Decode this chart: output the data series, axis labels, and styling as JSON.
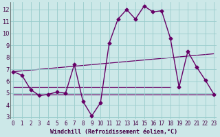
{
  "title": "",
  "xlabel": "Windchill (Refroidissement éolien,°C)",
  "ylabel": "",
  "bg_color": "#cce8e8",
  "line_color": "#660066",
  "grid_color": "#99cccc",
  "x_ticks": [
    0,
    1,
    2,
    3,
    4,
    5,
    6,
    7,
    8,
    9,
    10,
    11,
    12,
    13,
    14,
    15,
    16,
    17,
    18,
    19,
    20,
    21,
    22,
    23
  ],
  "y_ticks": [
    3,
    4,
    5,
    6,
    7,
    8,
    9,
    10,
    11,
    12
  ],
  "ylim": [
    2.8,
    12.6
  ],
  "xlim": [
    -0.3,
    23.3
  ],
  "main_series": {
    "x": [
      0,
      1,
      2,
      3,
      4,
      5,
      6,
      7,
      8,
      9,
      10,
      11,
      12,
      13,
      14,
      15,
      16,
      17,
      18,
      19,
      20,
      21,
      22,
      23
    ],
    "y": [
      6.8,
      6.5,
      5.3,
      4.8,
      4.9,
      5.1,
      5.0,
      7.4,
      4.3,
      3.1,
      4.2,
      9.2,
      11.2,
      12.0,
      11.2,
      12.3,
      11.8,
      11.9,
      9.6,
      5.5,
      8.5,
      7.2,
      6.1,
      4.9
    ]
  },
  "ref_lines": [
    {
      "x": [
        0,
        23
      ],
      "y": [
        6.8,
        8.3
      ]
    },
    {
      "x": [
        0,
        18
      ],
      "y": [
        5.5,
        5.5
      ]
    },
    {
      "x": [
        0,
        23
      ],
      "y": [
        4.9,
        4.9
      ]
    }
  ],
  "marker": "D",
  "markersize": 2.5,
  "linewidth": 1.0,
  "ref_linewidth": 0.9,
  "tick_fontsize": 5.5,
  "xlabel_fontsize": 6.0,
  "tick_color": "#440044",
  "xlabel_color": "#440044"
}
